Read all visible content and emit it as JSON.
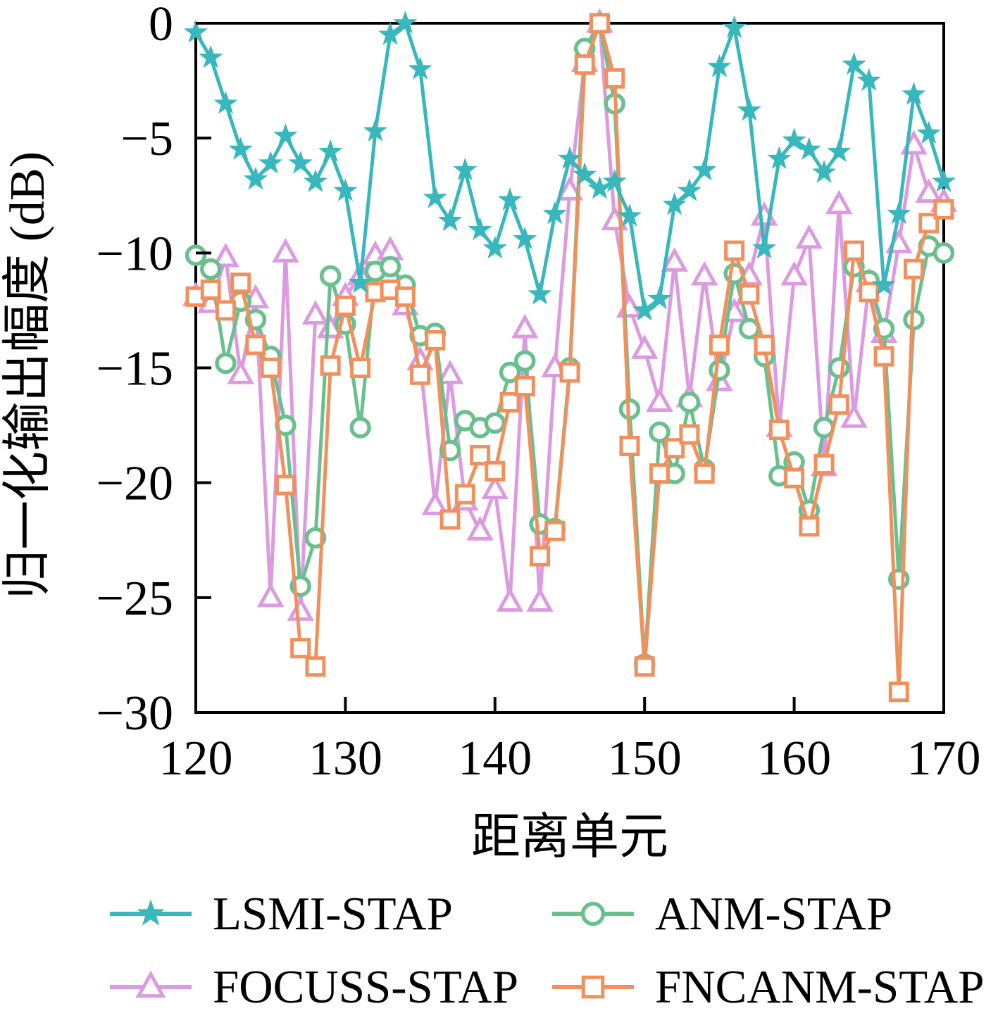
{
  "figure": {
    "background": "#ffffff",
    "frame_color": "#000000"
  },
  "axes": {
    "x_tick_labels": [
      "120",
      "130",
      "140",
      "150",
      "160",
      "170"
    ],
    "y_tick_labels": [
      "0",
      "−5",
      "−10",
      "−15",
      "−20",
      "−25",
      "−30"
    ]
  },
  "legend": {
    "items": [
      {
        "label": "LSMI-STAP",
        "color": "#38b7bd",
        "marker": "star"
      },
      {
        "label": "ANM-STAP",
        "color": "#69c08e",
        "marker": "circle"
      },
      {
        "label": "FOCUSS-STAP",
        "color": "#dc9be0",
        "marker": "triangle"
      },
      {
        "label": "FNCANM-STAP",
        "color": "#f0905c",
        "marker": "square"
      }
    ]
  },
  "chart_data": {
    "type": "line",
    "title": "",
    "xlabel": "距离单元",
    "ylabel": "归一化输出幅度 (dB)",
    "xlim": [
      120,
      170
    ],
    "ylim": [
      -30,
      0
    ],
    "x_ticks": [
      120,
      130,
      140,
      150,
      160,
      170
    ],
    "y_ticks": [
      0,
      -5,
      -10,
      -15,
      -20,
      -25,
      -30
    ],
    "grid": false,
    "legend_position": "below",
    "x": [
      120,
      121,
      122,
      123,
      124,
      125,
      126,
      127,
      128,
      129,
      130,
      131,
      132,
      133,
      134,
      135,
      136,
      137,
      138,
      139,
      140,
      141,
      142,
      143,
      144,
      145,
      146,
      147,
      148,
      149,
      150,
      151,
      152,
      153,
      154,
      155,
      156,
      157,
      158,
      159,
      160,
      161,
      162,
      163,
      164,
      165,
      166,
      167,
      168,
      169,
      170
    ],
    "series": [
      {
        "name": "LSMI-STAP",
        "color": "#38b7bd",
        "marker": "star",
        "values": [
          -0.4,
          -1.5,
          -3.5,
          -5.5,
          -6.8,
          -6.1,
          -4.9,
          -6.1,
          -6.9,
          -5.6,
          -7.3,
          -11.3,
          -4.7,
          -0.5,
          0.0,
          -2.0,
          -7.6,
          -8.6,
          -6.4,
          -9.0,
          -9.8,
          -7.7,
          -9.4,
          -11.8,
          -8.3,
          -5.9,
          -6.6,
          -7.2,
          -6.9,
          -8.4,
          -12.5,
          -12.0,
          -7.9,
          -7.3,
          -6.4,
          -1.9,
          -0.2,
          -3.8,
          -9.8,
          -5.9,
          -5.1,
          -5.5,
          -6.5,
          -5.6,
          -1.8,
          -2.5,
          -11.4,
          -8.3,
          -3.1,
          -4.8,
          -6.9
        ]
      },
      {
        "name": "ANM-STAP",
        "color": "#69c08e",
        "marker": "circle",
        "values": [
          -10.1,
          -10.7,
          -14.8,
          -12.1,
          -12.9,
          -14.5,
          -17.5,
          -24.5,
          -22.4,
          -11.0,
          -13.1,
          -17.6,
          -10.8,
          -10.6,
          -11.4,
          -13.6,
          -13.5,
          -18.6,
          -17.3,
          -17.6,
          -17.4,
          -15.2,
          -14.7,
          -21.8,
          -22.0,
          -15.0,
          -1.1,
          0.0,
          -3.5,
          -16.8,
          -27.9,
          -17.8,
          -19.6,
          -16.5,
          -19.4,
          -15.1,
          -10.9,
          -13.3,
          -14.5,
          -19.7,
          -19.1,
          -21.2,
          -17.6,
          -15.0,
          -10.6,
          -11.2,
          -13.3,
          -24.2,
          -12.9,
          -9.7,
          -10.0
        ]
      },
      {
        "name": "FOCUSS-STAP",
        "color": "#dc9be0",
        "marker": "triangle",
        "values": [
          -11.9,
          -12.2,
          -10.2,
          -15.3,
          -12.0,
          -25.0,
          -10.0,
          -25.6,
          -12.7,
          -13.3,
          -11.9,
          -11.0,
          -10.1,
          -9.9,
          -12.3,
          -14.7,
          -21.0,
          -15.3,
          -20.8,
          -22.1,
          -20.3,
          -25.2,
          -13.3,
          -25.2,
          -15.0,
          -7.3,
          -1.7,
          0.0,
          -8.6,
          -12.4,
          -14.2,
          -16.5,
          -10.4,
          -16.3,
          -11.0,
          -15.6,
          -12.6,
          -11.0,
          -8.4,
          -17.6,
          -11.0,
          -9.4,
          -19.3,
          -7.9,
          -17.2,
          -11.3,
          -13.5,
          -9.6,
          -5.3,
          -7.4,
          -7.8
        ]
      },
      {
        "name": "FNCANM-STAP",
        "color": "#f0905c",
        "marker": "square",
        "values": [
          -11.9,
          -11.6,
          -12.5,
          -11.3,
          -14.0,
          -15.0,
          -20.1,
          -27.2,
          -28.0,
          -14.9,
          -12.3,
          -15.0,
          -11.7,
          -11.6,
          -11.9,
          -15.3,
          -13.8,
          -21.6,
          -20.5,
          -18.8,
          -19.5,
          -16.5,
          -15.8,
          -23.2,
          -22.1,
          -15.2,
          -1.8,
          0.0,
          -2.4,
          -18.4,
          -28.0,
          -19.6,
          -18.5,
          -17.9,
          -19.6,
          -14.0,
          -9.9,
          -11.8,
          -14.0,
          -17.7,
          -19.8,
          -21.9,
          -19.2,
          -16.6,
          -9.9,
          -11.7,
          -14.5,
          -29.1,
          -10.7,
          -8.7,
          -8.1
        ]
      }
    ]
  }
}
